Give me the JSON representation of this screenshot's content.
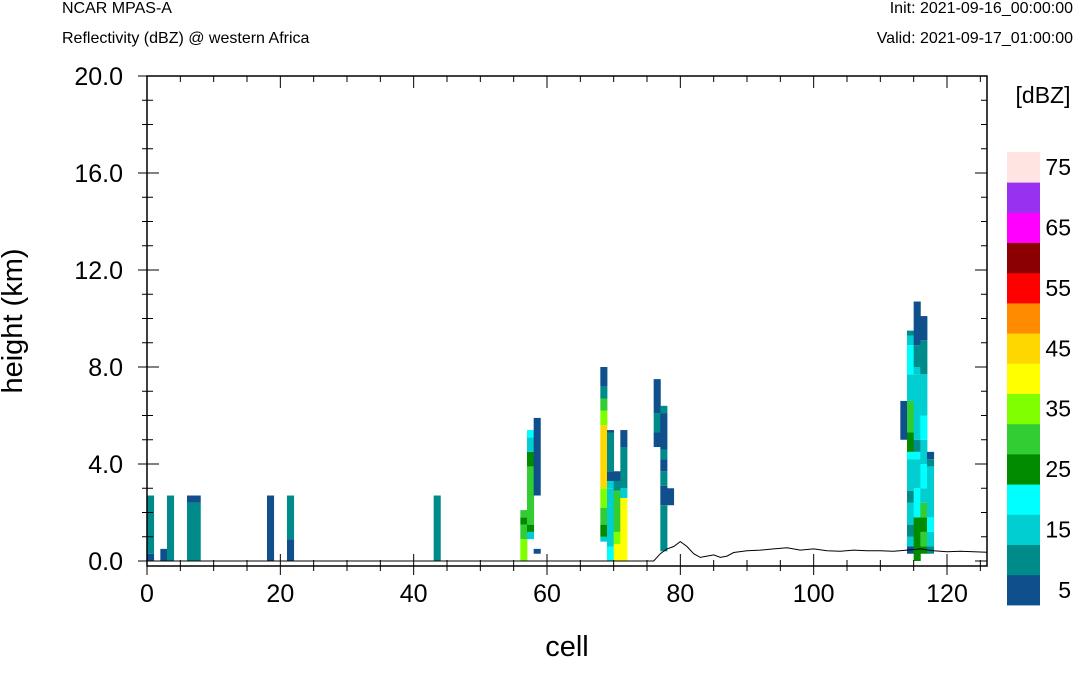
{
  "header": {
    "model": "NCAR MPAS-A",
    "title": "Reflectivity (dBZ) @ western Africa",
    "init": "Init: 2021-09-16_00:00:00",
    "valid": "Valid: 2021-09-17_01:00:00"
  },
  "chart_data": {
    "type": "heatmap",
    "xlabel": "cell",
    "ylabel": "height (km)",
    "xlim": [
      0,
      126
    ],
    "ylim": [
      0,
      20
    ],
    "x_ticks": [
      "0",
      "20",
      "40",
      "60",
      "80",
      "100",
      "120"
    ],
    "y_ticks": [
      "0.0",
      "4.0",
      "8.0",
      "12.0",
      "16.0",
      "20.0"
    ],
    "colorbar": {
      "unit": "[dBZ]",
      "levels": [
        5,
        10,
        15,
        20,
        25,
        30,
        35,
        40,
        45,
        50,
        55,
        60,
        65,
        70,
        75
      ],
      "labels": [
        "5",
        "15",
        "25",
        "35",
        "45",
        "55",
        "65",
        "75"
      ],
      "colors": [
        "#0e4f8c",
        "#008b8b",
        "#00ced1",
        "#00ffff",
        "#008b00",
        "#32cd32",
        "#7fff00",
        "#ffff00",
        "#ffd700",
        "#ff8c00",
        "#ff0000",
        "#8b0000",
        "#ff00ff",
        "#9932f0",
        "#ffe4e1"
      ]
    },
    "terrain": [
      [
        0,
        0
      ],
      [
        76,
        0
      ],
      [
        77,
        0.3
      ],
      [
        78,
        0.5
      ],
      [
        79,
        0.6
      ],
      [
        80,
        0.8
      ],
      [
        81,
        0.6
      ],
      [
        82,
        0.3
      ],
      [
        83,
        0.15
      ],
      [
        84,
        0.2
      ],
      [
        85,
        0.25
      ],
      [
        86,
        0.15
      ],
      [
        87,
        0.2
      ],
      [
        88,
        0.35
      ],
      [
        90,
        0.42
      ],
      [
        92,
        0.45
      ],
      [
        94,
        0.5
      ],
      [
        96,
        0.55
      ],
      [
        98,
        0.45
      ],
      [
        100,
        0.5
      ],
      [
        102,
        0.42
      ],
      [
        104,
        0.4
      ],
      [
        106,
        0.45
      ],
      [
        108,
        0.42
      ],
      [
        110,
        0.42
      ],
      [
        112,
        0.4
      ],
      [
        114,
        0.45
      ],
      [
        116,
        0.5
      ],
      [
        118,
        0.42
      ],
      [
        120,
        0.38
      ],
      [
        122,
        0.4
      ],
      [
        124,
        0.38
      ],
      [
        126,
        0.36
      ]
    ],
    "columns": [
      {
        "x": 0.5,
        "cells": [
          [
            0,
            0.3,
            5
          ],
          [
            0.3,
            2.7,
            10
          ]
        ]
      },
      {
        "x": 2.5,
        "cells": [
          [
            0,
            0.5,
            5
          ]
        ]
      },
      {
        "x": 3.5,
        "cells": [
          [
            0,
            2.7,
            10
          ]
        ]
      },
      {
        "x": 6.5,
        "cells": [
          [
            0,
            2.4,
            10
          ],
          [
            2.4,
            2.7,
            5
          ]
        ]
      },
      {
        "x": 7.5,
        "cells": [
          [
            0,
            2.4,
            10
          ],
          [
            2.4,
            2.7,
            5
          ]
        ]
      },
      {
        "x": 18.5,
        "cells": [
          [
            0,
            2.7,
            5
          ]
        ]
      },
      {
        "x": 21.5,
        "cells": [
          [
            0,
            0.9,
            5
          ],
          [
            0.9,
            2.7,
            10
          ]
        ]
      },
      {
        "x": 43.5,
        "cells": [
          [
            0,
            2.7,
            10
          ]
        ]
      },
      {
        "x": 56.5,
        "cells": [
          [
            0,
            0.9,
            35
          ],
          [
            0.9,
            1.5,
            30
          ],
          [
            1.5,
            1.8,
            25
          ],
          [
            1.8,
            2.1,
            30
          ]
        ]
      },
      {
        "x": 57.5,
        "cells": [
          [
            0.9,
            1.2,
            15
          ],
          [
            1.2,
            1.5,
            25
          ],
          [
            1.5,
            3.9,
            30
          ],
          [
            3.9,
            4.5,
            25
          ],
          [
            4.5,
            5.1,
            15
          ],
          [
            5.1,
            5.4,
            20
          ]
        ]
      },
      {
        "x": 58.5,
        "cells": [
          [
            0.3,
            0.5,
            5
          ],
          [
            2.7,
            5.9,
            5
          ]
        ]
      },
      {
        "x": 68.5,
        "cells": [
          [
            0.8,
            1.0,
            15
          ],
          [
            1.0,
            1.5,
            25
          ],
          [
            1.5,
            2.2,
            30
          ],
          [
            2.2,
            3.0,
            35
          ],
          [
            3.0,
            5.6,
            45
          ],
          [
            5.6,
            6.2,
            35
          ],
          [
            6.2,
            6.7,
            30
          ],
          [
            6.7,
            7.2,
            10
          ],
          [
            7.2,
            8.0,
            5
          ]
        ]
      },
      {
        "x": 69.5,
        "cells": [
          [
            0,
            0.6,
            20
          ],
          [
            0.6,
            3.0,
            15
          ],
          [
            3.0,
            3.3,
            15
          ],
          [
            3.3,
            3.7,
            5
          ],
          [
            3.7,
            5.3,
            10
          ],
          [
            5.3,
            5.4,
            5
          ]
        ]
      },
      {
        "x": 70.5,
        "cells": [
          [
            0,
            0.7,
            40
          ],
          [
            0.7,
            1.2,
            35
          ],
          [
            1.2,
            2.9,
            30
          ],
          [
            2.9,
            3.3,
            10
          ],
          [
            3.3,
            3.7,
            5
          ]
        ]
      },
      {
        "x": 71.5,
        "cells": [
          [
            0,
            0.6,
            40
          ],
          [
            0.6,
            2.6,
            40
          ],
          [
            2.6,
            3.0,
            15
          ],
          [
            3.0,
            4.7,
            10
          ],
          [
            4.7,
            5.4,
            5
          ]
        ]
      },
      {
        "x": 76.5,
        "cells": [
          [
            4.7,
            5.3,
            5
          ],
          [
            5.3,
            6.1,
            10
          ],
          [
            6.1,
            7.5,
            5
          ]
        ]
      },
      {
        "x": 77.5,
        "cells": [
          [
            0.4,
            2.3,
            10
          ],
          [
            2.3,
            3.1,
            5
          ],
          [
            3.1,
            3.7,
            10
          ],
          [
            3.7,
            4.2,
            5
          ],
          [
            4.2,
            4.6,
            10
          ],
          [
            4.6,
            6.1,
            5
          ],
          [
            6.1,
            6.4,
            10
          ]
        ]
      },
      {
        "x": 78.5,
        "cells": [
          [
            2.3,
            3.0,
            5
          ]
        ]
      },
      {
        "x": 113.5,
        "cells": [
          [
            5.0,
            6.6,
            5
          ]
        ]
      },
      {
        "x": 114.5,
        "cells": [
          [
            0.3,
            0.6,
            5
          ],
          [
            0.6,
            1.0,
            15
          ],
          [
            1.0,
            1.5,
            10
          ],
          [
            1.5,
            2.4,
            15
          ],
          [
            2.4,
            2.9,
            10
          ],
          [
            2.9,
            4.2,
            15
          ],
          [
            4.2,
            4.5,
            20
          ],
          [
            4.5,
            5.3,
            25
          ],
          [
            5.3,
            6.6,
            30
          ],
          [
            6.6,
            7.7,
            15
          ],
          [
            7.7,
            8.9,
            20
          ],
          [
            8.9,
            9.3,
            15
          ],
          [
            9.3,
            9.5,
            10
          ]
        ]
      },
      {
        "x": 115.5,
        "cells": [
          [
            0,
            0.5,
            25
          ],
          [
            0.5,
            1.8,
            25
          ],
          [
            1.8,
            3.0,
            20
          ],
          [
            3.0,
            4.2,
            15
          ],
          [
            4.2,
            4.5,
            20
          ],
          [
            4.5,
            5.0,
            10
          ],
          [
            5.0,
            7.7,
            15
          ],
          [
            7.7,
            8.0,
            15
          ],
          [
            8.0,
            8.9,
            10
          ],
          [
            8.9,
            10.7,
            5
          ]
        ]
      },
      {
        "x": 116.5,
        "cells": [
          [
            0.3,
            0.6,
            25
          ],
          [
            0.6,
            1.2,
            30
          ],
          [
            1.2,
            1.8,
            25
          ],
          [
            1.8,
            2.4,
            30
          ],
          [
            2.4,
            3.0,
            15
          ],
          [
            3.0,
            4.0,
            20
          ],
          [
            4.0,
            5.0,
            15
          ],
          [
            5.0,
            6.0,
            20
          ],
          [
            6.0,
            7.7,
            15
          ],
          [
            7.7,
            8.0,
            10
          ],
          [
            8.0,
            9.1,
            10
          ],
          [
            9.1,
            10.1,
            5
          ]
        ]
      },
      {
        "x": 117.5,
        "cells": [
          [
            0.3,
            0.6,
            10
          ],
          [
            0.6,
            1.2,
            15
          ],
          [
            1.2,
            1.8,
            20
          ],
          [
            1.8,
            3.9,
            15
          ],
          [
            3.9,
            4.2,
            10
          ],
          [
            4.2,
            4.5,
            5
          ]
        ]
      }
    ]
  }
}
